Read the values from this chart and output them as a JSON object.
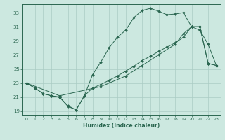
{
  "xlabel": "Humidex (Indice chaleur)",
  "background_color": "#cce8e0",
  "grid_color": "#aaccc4",
  "line_color": "#2a6650",
  "xlim": [
    -0.5,
    23.5
  ],
  "ylim": [
    18.5,
    34.2
  ],
  "xticks": [
    0,
    1,
    2,
    3,
    4,
    5,
    6,
    7,
    8,
    9,
    10,
    11,
    12,
    13,
    14,
    15,
    16,
    17,
    18,
    19,
    20,
    21,
    22,
    23
  ],
  "yticks": [
    19,
    21,
    23,
    25,
    27,
    29,
    31,
    33
  ],
  "line1_x": [
    0,
    1,
    2,
    3,
    4,
    5,
    6,
    7,
    8,
    9,
    10,
    11,
    12,
    13,
    14,
    15,
    16,
    17,
    18,
    19,
    20,
    21,
    22,
    23
  ],
  "line1_y": [
    23.0,
    22.3,
    21.5,
    21.2,
    21.0,
    19.7,
    19.2,
    21.2,
    24.2,
    26.0,
    28.0,
    29.5,
    30.5,
    32.3,
    33.3,
    33.6,
    33.2,
    32.7,
    32.8,
    33.0,
    31.0,
    30.5,
    28.5,
    25.5
  ],
  "line2_x": [
    0,
    1,
    2,
    3,
    4,
    5,
    6,
    7,
    8,
    9,
    10,
    11,
    12,
    13,
    14,
    15,
    16,
    17,
    18,
    19,
    20,
    21,
    22,
    23
  ],
  "line2_y": [
    23.0,
    22.3,
    21.5,
    21.2,
    21.0,
    19.8,
    19.2,
    21.2,
    22.3,
    22.8,
    23.4,
    24.0,
    24.7,
    25.4,
    26.2,
    26.8,
    27.5,
    28.1,
    28.7,
    29.5,
    31.0,
    31.0,
    25.8,
    25.5
  ],
  "line3_x": [
    0,
    4,
    9,
    12,
    14,
    16,
    18,
    19,
    20,
    21,
    22,
    23
  ],
  "line3_y": [
    23.0,
    21.2,
    22.5,
    24.0,
    25.5,
    27.0,
    28.5,
    30.0,
    31.0,
    31.0,
    25.8,
    25.5
  ]
}
